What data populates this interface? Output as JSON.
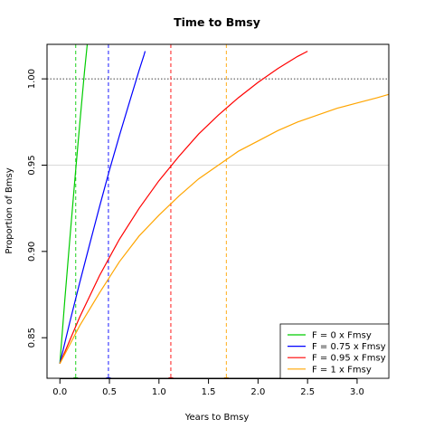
{
  "chart_data": {
    "type": "line",
    "title": "Time to Bmsy",
    "xlabel": "Years to Bmsy",
    "ylabel": "Proportion of Bmsy",
    "xlim": [
      -0.13,
      3.32
    ],
    "ylim": [
      0.8265,
      1.02
    ],
    "x_ticks": [
      0.0,
      0.5,
      1.0,
      1.5,
      2.0,
      2.5,
      3.0
    ],
    "x_tick_labels": [
      "0.0",
      "0.5",
      "1.0",
      "1.5",
      "2.0",
      "2.5",
      "3.0"
    ],
    "y_ticks": [
      0.85,
      0.9,
      0.95,
      1.0
    ],
    "y_tick_labels": [
      "0.85",
      "0.90",
      "0.95",
      "1.00"
    ],
    "reference_lines": {
      "horizontal": [
        {
          "y": 1.0,
          "color": "#000000",
          "style": "dotted"
        },
        {
          "y": 0.95,
          "color": "#cccccc",
          "style": "solid"
        }
      ]
    },
    "legend_position": "bottom-right",
    "series": [
      {
        "name": "F = 0 x Fmsy",
        "color": "#00cc00",
        "x": [
          0.0,
          0.05,
          0.1,
          0.15,
          0.2,
          0.25,
          0.28
        ],
        "y": [
          0.835,
          0.872,
          0.907,
          0.941,
          0.974,
          1.005,
          1.022
        ],
        "time_to_target": 0.16
      },
      {
        "name": "F = 0.75 x Fmsy",
        "color": "#0000ff",
        "x": [
          0.0,
          0.1,
          0.2,
          0.3,
          0.4,
          0.5,
          0.6,
          0.7,
          0.8,
          0.85,
          0.86
        ],
        "y": [
          0.835,
          0.859,
          0.882,
          0.904,
          0.926,
          0.947,
          0.967,
          0.986,
          1.005,
          1.014,
          1.016
        ],
        "time_to_target": 0.49
      },
      {
        "name": "F = 0.95 x Fmsy",
        "color": "#ff0000",
        "x": [
          0.0,
          0.2,
          0.4,
          0.6,
          0.8,
          1.0,
          1.2,
          1.4,
          1.6,
          1.8,
          2.0,
          2.2,
          2.4,
          2.5
        ],
        "y": [
          0.835,
          0.862,
          0.886,
          0.907,
          0.925,
          0.941,
          0.955,
          0.968,
          0.979,
          0.989,
          0.998,
          1.006,
          1.013,
          1.016
        ],
        "time_to_target": 1.12
      },
      {
        "name": "F = 1 x Fmsy",
        "color": "#ffa500",
        "x": [
          0.0,
          0.2,
          0.4,
          0.6,
          0.8,
          1.0,
          1.2,
          1.4,
          1.6,
          1.8,
          2.0,
          2.2,
          2.4,
          2.6,
          2.8,
          3.0,
          3.2,
          3.32
        ],
        "y": [
          0.835,
          0.857,
          0.876,
          0.894,
          0.909,
          0.921,
          0.932,
          0.942,
          0.95,
          0.958,
          0.964,
          0.97,
          0.975,
          0.979,
          0.983,
          0.986,
          0.989,
          0.991
        ],
        "time_to_target": 1.68
      }
    ]
  }
}
